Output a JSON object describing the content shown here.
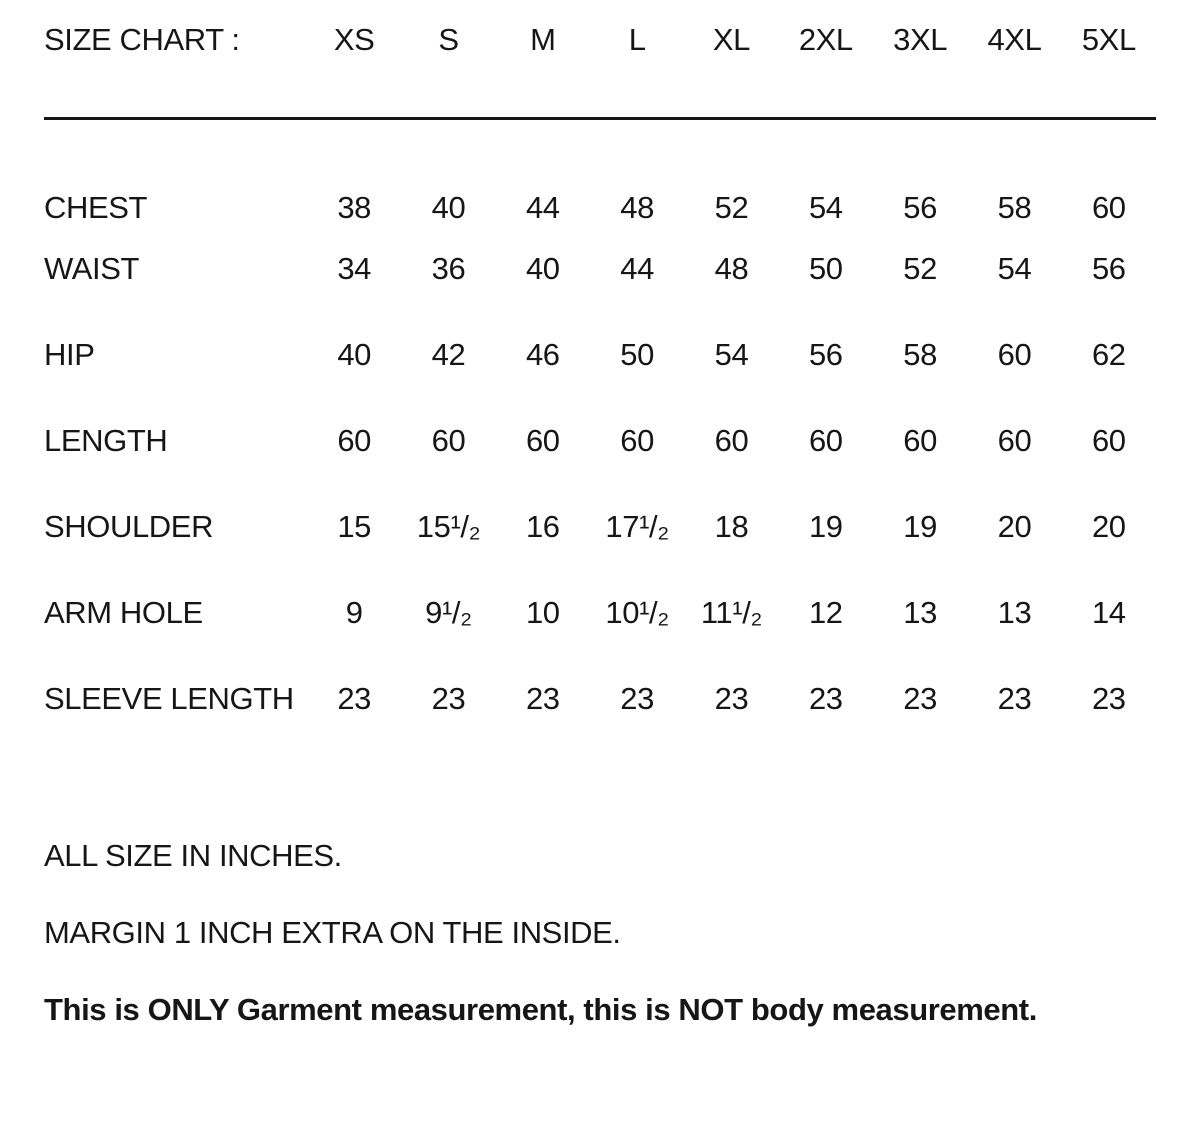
{
  "chart_data": {
    "type": "table",
    "title": "SIZE CHART :",
    "columns": [
      "XS",
      "S",
      "M",
      "L",
      "XL",
      "2XL",
      "3XL",
      "4XL",
      "5XL"
    ],
    "rows": [
      {
        "label": "CHEST",
        "values": [
          "38",
          "40",
          "44",
          "48",
          "52",
          "54",
          "56",
          "58",
          "60"
        ]
      },
      {
        "label": "WAIST",
        "values": [
          "34",
          "36",
          "40",
          "44",
          "48",
          "50",
          "52",
          "54",
          "56"
        ]
      },
      {
        "label": "HIP",
        "values": [
          "40",
          "42",
          "46",
          "50",
          "54",
          "56",
          "58",
          "60",
          "62"
        ]
      },
      {
        "label": "LENGTH",
        "values": [
          "60",
          "60",
          "60",
          "60",
          "60",
          "60",
          "60",
          "60",
          "60"
        ]
      },
      {
        "label": "SHOULDER",
        "values": [
          "15",
          "15¹/₂",
          "16",
          "17¹/₂",
          "18",
          "19",
          "19",
          "20",
          "20"
        ]
      },
      {
        "label": "ARM HOLE",
        "values": [
          "9",
          "9¹/₂",
          "10",
          "10¹/₂",
          "11¹/₂",
          "12",
          "13",
          "13",
          "14"
        ]
      },
      {
        "label": "SLEEVE LENGTH",
        "values": [
          "23",
          "23",
          "23",
          "23",
          "23",
          "23",
          "23",
          "23",
          "23"
        ]
      }
    ],
    "units": "inches",
    "notes": [
      "ALL SIZE IN INCHES.",
      "MARGIN 1 INCH EXTRA ON THE INSIDE.",
      "This is ONLY Garment measurement, this is NOT body measurement."
    ],
    "layout_hints": {
      "grid": false,
      "divider_rule": true
    },
    "colors": {
      "text": "#161616",
      "background": "#ffffff",
      "rule": "#161616"
    }
  }
}
